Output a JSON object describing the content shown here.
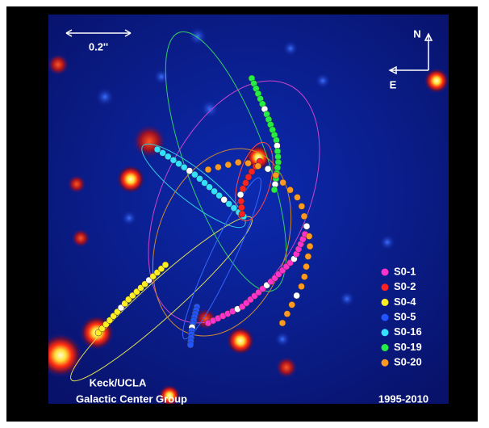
{
  "scale_bar": {
    "label": "0.2''"
  },
  "compass": {
    "north": "N",
    "east": "E"
  },
  "legend": [
    {
      "name": "S0-1",
      "color": "#ff33cc"
    },
    {
      "name": "S0-2",
      "color": "#ff2020"
    },
    {
      "name": "S0-4",
      "color": "#ffee22"
    },
    {
      "name": "S0-5",
      "color": "#2255ff"
    },
    {
      "name": "S0-16",
      "color": "#33e0ff"
    },
    {
      "name": "S0-19",
      "color": "#22ee44"
    },
    {
      "name": "S0-20",
      "color": "#ff9922"
    }
  ],
  "credit": {
    "line1": "Keck/UCLA",
    "line2": "Galactic Center Group"
  },
  "years": "1995-2010"
}
